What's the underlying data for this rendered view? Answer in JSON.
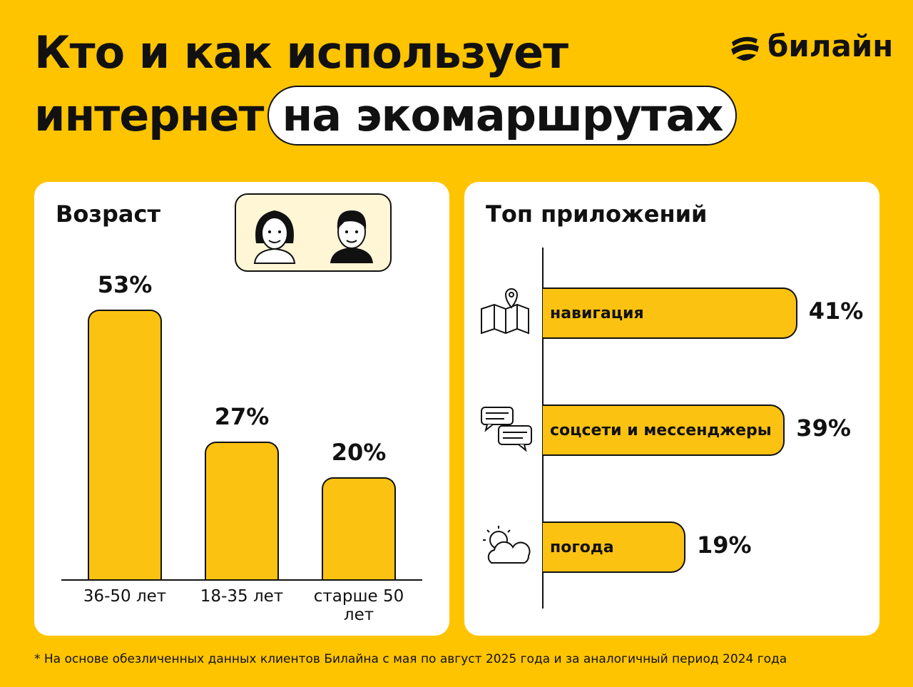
{
  "header": {
    "title_line1": "Кто и как использует",
    "title_line2": "интернет",
    "title_highlight": "на экомаршрутах"
  },
  "brand": {
    "name": "билайн",
    "logo_icon": "beeline-stripe-ball-icon"
  },
  "colors": {
    "background": "#FFC400",
    "bar": "#FBC212",
    "panel": "#FFFFFF",
    "ink": "#111111"
  },
  "footnote": "* На основе обезличенных данных клиентов Билайна с мая по август 2025 года и за аналогичный период 2024 года",
  "chart_data": [
    {
      "type": "bar",
      "title": "Возраст",
      "categories": [
        "36-50 лет",
        "18-35 лет",
        "старше 50 лет"
      ],
      "values": [
        53,
        27,
        20
      ],
      "labels": [
        "53%",
        "27%",
        "20%"
      ],
      "unit": "%",
      "icons": [
        "woman-avatar-icon",
        "man-avatar-icon"
      ]
    },
    {
      "type": "bar",
      "orientation": "horizontal",
      "title": "Топ приложений",
      "categories": [
        "навигация",
        "соцсети и мессенджеры",
        "погода"
      ],
      "values": [
        41,
        39,
        19
      ],
      "labels": [
        "41%",
        "39%",
        "19%"
      ],
      "unit": "%",
      "icons": [
        "map-pin-icon",
        "chat-bubbles-icon",
        "sun-cloud-icon"
      ]
    }
  ]
}
